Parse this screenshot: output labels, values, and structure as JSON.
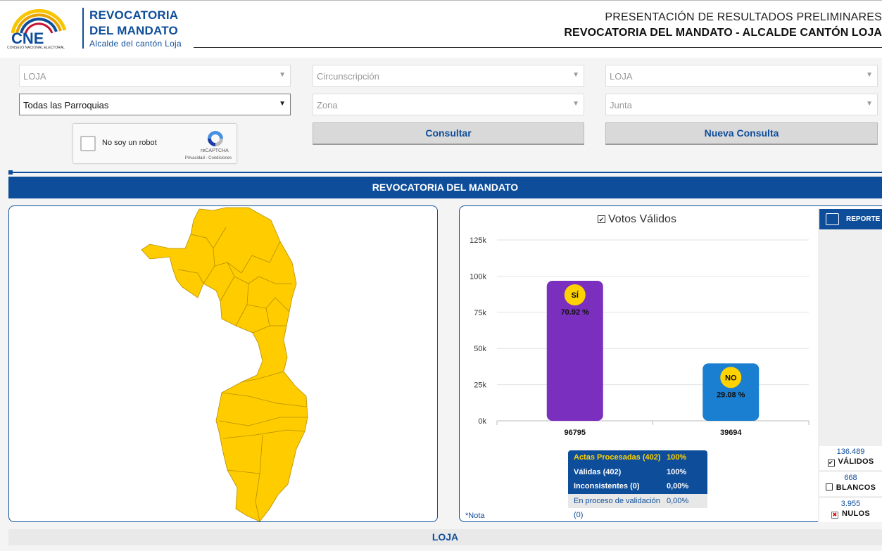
{
  "header": {
    "logo_text": "CNE",
    "logo_sub": "CONSEJO NACIONAL ELECTORAL",
    "brand_line1": "REVOCATORIA",
    "brand_line2": "DEL MANDATO",
    "brand_line3": "Alcalde del cantón Loja",
    "title_line1": "PRESENTACIÓN DE RESULTADOS PRELIMINARES",
    "title_line2": "REVOCATORIA DEL MANDATO - ALCALDE CANTÓN LOJA"
  },
  "filters": {
    "provincia": "LOJA",
    "circunscripcion": "Circunscripción",
    "canton": "LOJA",
    "parroquia": "Todas las Parroquias",
    "zona": "Zona",
    "junta": "Junta",
    "consultar_label": "Consultar",
    "nueva_consulta_label": "Nueva Consulta"
  },
  "captcha": {
    "label": "No soy un robot",
    "brand": "reCAPTCHA",
    "links": "Privacidad - Condiciones"
  },
  "section_title": "REVOCATORIA DEL MANDATO",
  "chart_title": "Votos Válidos",
  "chart_data": {
    "type": "bar",
    "title": "Votos Válidos",
    "categories": [
      "SÍ",
      "NO"
    ],
    "values": [
      96795,
      39694
    ],
    "percent_labels": [
      "70.92 %",
      "29.08 %"
    ],
    "value_labels": [
      "96795",
      "39694"
    ],
    "colors": [
      "#7b2fbe",
      "#1a7fd0"
    ],
    "badge_color": "#ffd200",
    "ylim": [
      0,
      125000
    ],
    "yticks": [
      0,
      25000,
      50000,
      75000,
      100000,
      125000
    ],
    "ytick_labels": [
      "0k",
      "25k",
      "50k",
      "75k",
      "100k",
      "125k"
    ],
    "grid": true
  },
  "actas": {
    "rows": [
      {
        "label": "Actas Procesadas (402)",
        "value": "100%"
      },
      {
        "label": "Válidas (402)",
        "value": "100%"
      },
      {
        "label": "Inconsistentes (0)",
        "value": "0,00%"
      },
      {
        "label": "En proceso de validación (0)",
        "value": "0,00%"
      }
    ]
  },
  "nota": "*Nota",
  "sidebar": {
    "reporte_label": "REPORTE",
    "validos_count": "136.489",
    "validos_label": "VÁLIDOS",
    "blancos_count": "668",
    "blancos_label": "BLANCOS",
    "nulos_count": "3.955",
    "nulos_label": "NULOS"
  },
  "map": {
    "fill": "#ffcc00",
    "stroke": "#b58f00"
  },
  "footer_label": "LOJA"
}
